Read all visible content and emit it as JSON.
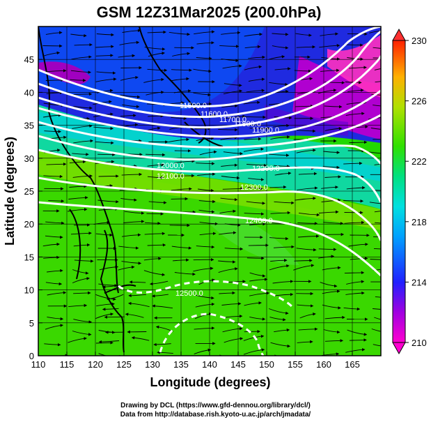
{
  "title": "GSM 12Z31Mar2025 (200.0hPa)",
  "xlabel": "Longitude (degrees)",
  "ylabel": "Latitude  (degrees)",
  "x_ticks": [
    "110",
    "115",
    "120",
    "125",
    "130",
    "135",
    "140",
    "145",
    "150",
    "155",
    "160",
    "165"
  ],
  "y_ticks": [
    "0",
    "5",
    "10",
    "15",
    "20",
    "25",
    "30",
    "35",
    "40",
    "45"
  ],
  "xlim": [
    110,
    170
  ],
  "ylim": [
    0,
    50
  ],
  "colorbar": {
    "ticks": [
      "230",
      "226",
      "222",
      "218",
      "214",
      "210"
    ],
    "range": [
      210,
      230
    ],
    "description": "temperature-scale"
  },
  "contours": {
    "color": "#ffffff",
    "labels": [
      "11500.0",
      "11600.0",
      "11700.0",
      "11800.0",
      "11900.0",
      "12000.0",
      "12100.0",
      "12200.0",
      "12300.0",
      "12400.0",
      "12500.0"
    ]
  },
  "credits": {
    "line1": "Drawing by DCL (https://www.gfd-dennou.org/library/dcl/)",
    "line2": "Data from http://database.rish.kyoto-u.ac.jp/arch/jmadata/"
  },
  "colors": {
    "purple": "#b000c8",
    "blue": "#1a1ad8",
    "cyan": "#00d8d8",
    "green": "#22d800",
    "white": "#ffffff"
  }
}
